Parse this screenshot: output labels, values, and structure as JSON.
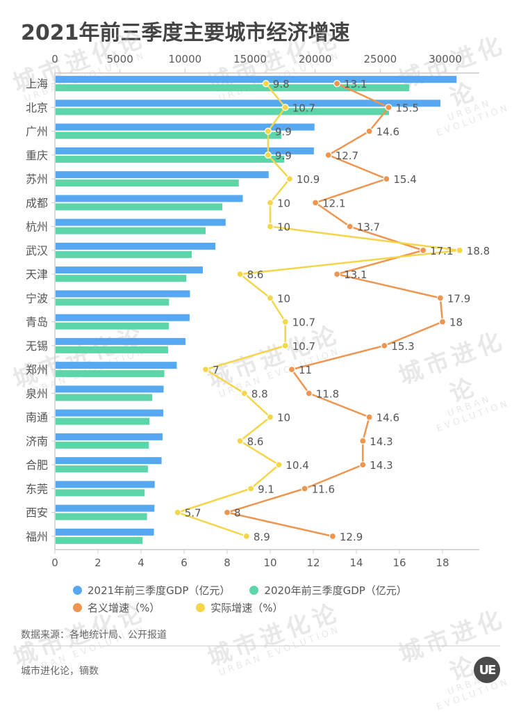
{
  "title": "2021年前三季度主要城市经济增速",
  "watermark": {
    "cn": "城市进化论",
    "en": "URBAN EVOLUTION"
  },
  "colors": {
    "gdp2021": "#56a8f0",
    "gdp2020": "#5cd5a8",
    "nominal": "#ee9550",
    "real": "#f3d64a",
    "axis": "#cccccc"
  },
  "chart_data": {
    "type": "bar",
    "title": "2021年前三季度主要城市经济增速",
    "orientation": "horizontal",
    "categories": [
      "上海",
      "北京",
      "广州",
      "重庆",
      "苏州",
      "成都",
      "杭州",
      "武汉",
      "天津",
      "宁波",
      "青岛",
      "无锡",
      "郑州",
      "泉州",
      "南通",
      "济南",
      "合肥",
      "东莞",
      "西安",
      "福州"
    ],
    "series": [
      {
        "name": "2021年前三季度GDP（亿元）",
        "type": "bar",
        "axis": "top",
        "values": [
          30867,
          29630,
          19950,
          19900,
          16427,
          14441,
          13121,
          12336,
          11373,
          10380,
          10352,
          10033,
          9364,
          8355,
          8330,
          8280,
          8200,
          7670,
          7650,
          7610
        ]
      },
      {
        "name": "2020年前三季度GDP（亿元）",
        "type": "bar",
        "axis": "top",
        "values": [
          27230,
          25680,
          17400,
          17620,
          14132,
          12870,
          11580,
          10520,
          10100,
          8770,
          8750,
          8700,
          8410,
          7480,
          7270,
          7220,
          7150,
          6900,
          7080,
          6740
        ]
      },
      {
        "name": "名义增速（%）",
        "type": "line",
        "axis": "bottom",
        "values": [
          13.1,
          15.5,
          14.6,
          12.7,
          15.4,
          12.1,
          13.7,
          17.1,
          13.1,
          17.9,
          18,
          15.3,
          11,
          11.8,
          14.6,
          14.3,
          14.3,
          11.6,
          8,
          12.9
        ]
      },
      {
        "name": "实际增速（%）",
        "type": "line",
        "axis": "bottom",
        "values": [
          9.8,
          10.7,
          9.9,
          9.9,
          10.9,
          10,
          10,
          18.8,
          8.6,
          10,
          10.7,
          10.7,
          7,
          8.8,
          10,
          8.6,
          10.4,
          9.1,
          5.7,
          8.9
        ]
      }
    ],
    "top_axis": {
      "range": [
        0,
        32000
      ],
      "ticks": [
        0,
        5000,
        10000,
        15000,
        20000,
        25000,
        30000
      ],
      "tick_labels": [
        "0",
        "5000",
        "10000",
        "15000",
        "20000",
        "25000",
        "30000"
      ]
    },
    "bottom_axis": {
      "range": [
        0,
        19.5
      ],
      "ticks": [
        0,
        2,
        4,
        6,
        8,
        10,
        12,
        14,
        16,
        18
      ],
      "tick_labels": [
        "0",
        "2",
        "4",
        "6",
        "8",
        "10",
        "12",
        "14",
        "16",
        "18"
      ]
    },
    "grid": false,
    "legend_position": "bottom"
  },
  "legend": [
    {
      "label": "2021年前三季度GDP（亿元）",
      "color": "#56a8f0"
    },
    {
      "label": "2020年前三季度GDP（亿元）",
      "color": "#5cd5a8"
    },
    {
      "label": "名义增速（%）",
      "color": "#ee9550"
    },
    {
      "label": "实际增速（%）",
      "color": "#f3d64a"
    }
  ],
  "source": "数据来源：各地统计局、公开报道",
  "credit": "城市进化论，镝数",
  "logo_text": "UE"
}
